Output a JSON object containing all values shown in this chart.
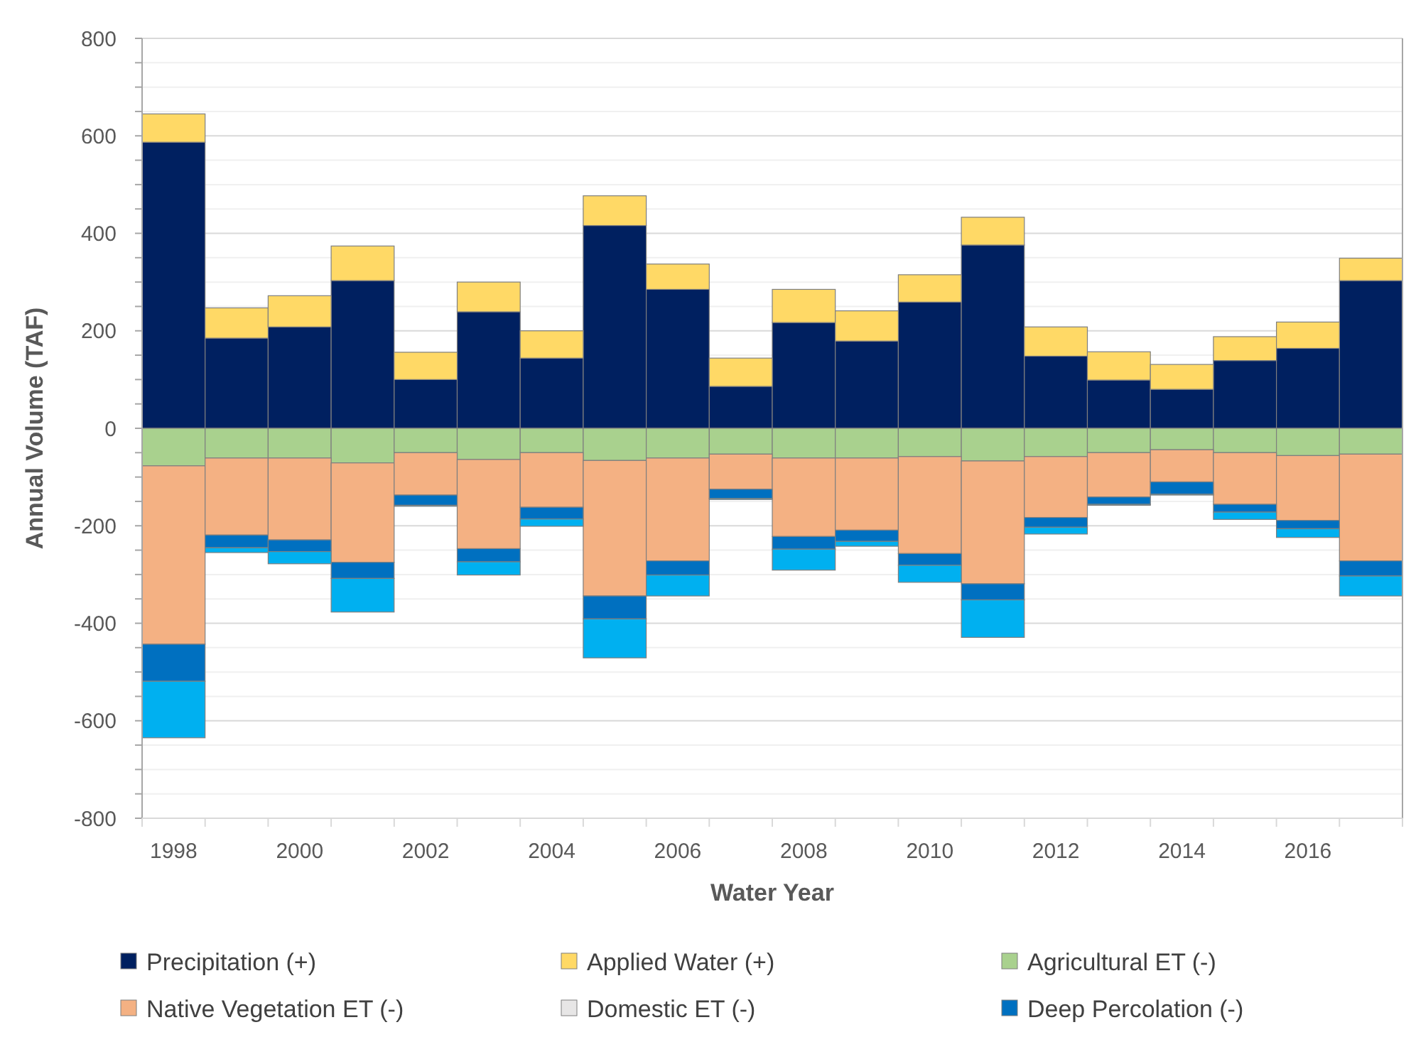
{
  "chart_data": {
    "type": "bar",
    "stacked": true,
    "xlabel": "Water Year",
    "ylabel": "Annual Volume (TAF)",
    "categories": [
      "1998",
      null,
      "2000",
      null,
      "2002",
      null,
      "2004",
      null,
      "2006",
      null,
      "2008",
      null,
      "2010",
      null,
      "2012",
      null,
      "2014",
      null,
      "2016",
      null
    ],
    "series": [
      {
        "name": "Precipitation (+)",
        "color": "#002060",
        "values": [
          587,
          185,
          208,
          303,
          100,
          239,
          144,
          416,
          285,
          86,
          217,
          179,
          259,
          376,
          148,
          99,
          80,
          139,
          164,
          303
        ]
      },
      {
        "name": "Applied Water (+)",
        "color": "#ffd966",
        "values": [
          58,
          62,
          64,
          71,
          56,
          61,
          56,
          61,
          52,
          58,
          68,
          62,
          56,
          57,
          60,
          58,
          51,
          49,
          54,
          46
        ]
      },
      {
        "name": "Agricultural ET (-)",
        "color": "#a9d18e",
        "values": [
          -77,
          -61,
          -61,
          -71,
          -50,
          -64,
          -50,
          -66,
          -61,
          -53,
          -61,
          -61,
          -58,
          -67,
          -58,
          -50,
          -44,
          -50,
          -56,
          -53
        ]
      },
      {
        "name": "Native Vegetation ET (-)",
        "color": "#f4b183",
        "values": [
          -366,
          -158,
          -168,
          -204,
          -87,
          -183,
          -112,
          -278,
          -211,
          -72,
          -161,
          -148,
          -199,
          -252,
          -125,
          -91,
          -66,
          -106,
          -133,
          -219
        ]
      },
      {
        "name": "Domestic ET (-)",
        "color": "#e7e6e6",
        "values": [
          0,
          0,
          0,
          0,
          0,
          0,
          0,
          0,
          0,
          0,
          0,
          0,
          0,
          0,
          0,
          0,
          0,
          0,
          0,
          0
        ]
      },
      {
        "name": "Deep Percolation (-)",
        "color": "#0070c0",
        "values": [
          -76,
          -26,
          -24,
          -33,
          -21,
          -27,
          -24,
          -47,
          -29,
          -19,
          -26,
          -23,
          -24,
          -33,
          -20,
          -15,
          -25,
          -16,
          -17,
          -31
        ]
      },
      {
        "color": "#00b0f0",
        "values": [
          -116,
          -10,
          -25,
          -69,
          -2,
          -27,
          -15,
          -80,
          -43,
          -2,
          -43,
          -10,
          -35,
          -77,
          -14,
          -2,
          -2,
          -15,
          -18,
          -41
        ]
      }
    ],
    "ylim": [
      -800,
      800
    ],
    "yticks": [
      -800,
      {
        "value": -750,
        "label": null
      },
      {
        "value": -700,
        "label": null
      },
      {
        "value": -650,
        "label": null
      },
      -600,
      {
        "value": -550,
        "label": null
      },
      {
        "value": -500,
        "label": null
      },
      {
        "value": -450,
        "label": null
      },
      -400,
      {
        "value": -350,
        "label": null
      },
      {
        "value": -300,
        "label": null
      },
      {
        "value": -250,
        "label": null
      },
      -200,
      {
        "value": -150,
        "label": null
      },
      {
        "value": -100,
        "label": null
      },
      {
        "value": -50,
        "label": null
      },
      0,
      {
        "value": 50,
        "label": null
      },
      {
        "value": 100,
        "label": null
      },
      {
        "value": 150,
        "label": null
      },
      200,
      {
        "value": 250,
        "label": null
      },
      {
        "value": 300,
        "label": null
      },
      {
        "value": 350,
        "label": null
      },
      400,
      {
        "value": 450,
        "label": null
      },
      {
        "value": 500,
        "label": null
      },
      {
        "value": 550,
        "label": null
      },
      600,
      {
        "value": 650,
        "label": null
      },
      {
        "value": 700,
        "label": null
      },
      {
        "value": 750,
        "label": null
      },
      800
    ],
    "grid": "y",
    "legend": "bottom"
  }
}
